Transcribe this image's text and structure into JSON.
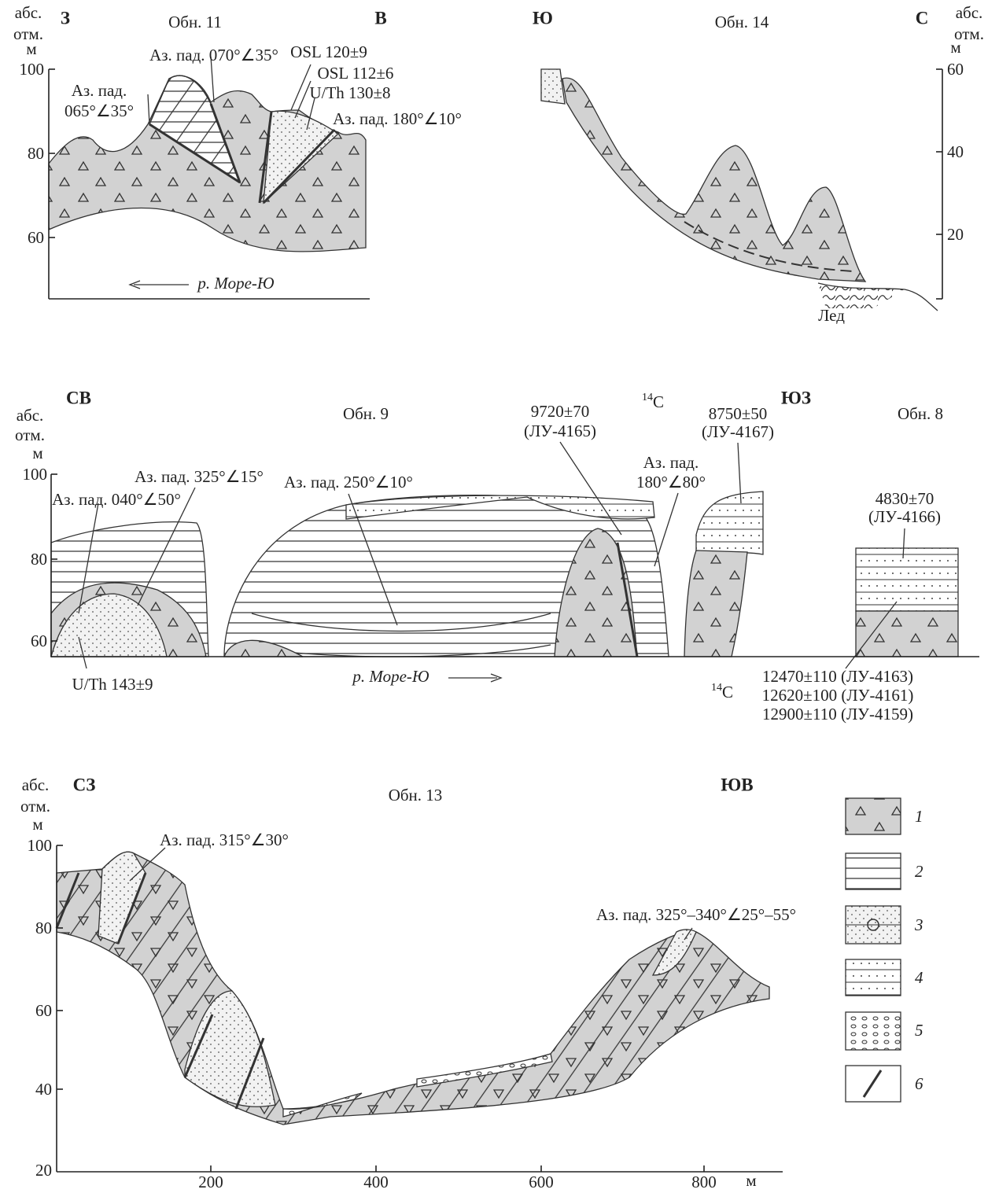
{
  "section_11": {
    "axis_label": [
      "абс.",
      "отм.",
      "м"
    ],
    "west": "З",
    "title": "Обн. 11",
    "east": "В",
    "yticks": [
      100,
      80,
      60
    ],
    "annotations": [
      "Аз. пад. 070°∠35°",
      "OSL 120±9",
      "OSL 112±6",
      "U/Th 130±8",
      "Аз. пад.",
      "065°∠35°",
      "Аз. пад. 180°∠10°"
    ],
    "river": "р. Море-Ю"
  },
  "section_14": {
    "south": "Ю",
    "title": "Обн. 14",
    "north": "С",
    "axis_label": [
      "абс.",
      "отм.",
      "м"
    ],
    "yticks": [
      60,
      40,
      20
    ],
    "ice": "Лед"
  },
  "section_9_8": {
    "northeast": "СВ",
    "axis_label": [
      "абс.",
      "отм.",
      "м"
    ],
    "title_9": "Обн. 9",
    "radiocarbon_top": {
      "mass": "14",
      "element": "C"
    },
    "southwest": "ЮЗ",
    "title_8": "Обн. 8",
    "yticks": [
      100,
      80,
      60
    ],
    "dates": [
      [
        "9720±70",
        "(ЛУ-4165)"
      ],
      [
        "8750±50",
        "(ЛУ-4167)"
      ],
      [
        "4830±70",
        "(ЛУ-4166)"
      ]
    ],
    "annotations": [
      "Аз. пад.",
      "180°∠80°",
      "Аз. пад. 325°∠15°",
      "Аз. пад. 040°∠50°",
      "Аз. пад. 250°∠10°",
      "U/Th 143±9"
    ],
    "river": "р. Море-Ю",
    "radiocarbon_bottom": {
      "mass": "14",
      "element": "C"
    },
    "bottom_dates": [
      "12470±110 (ЛУ-4163)",
      "12620±100 (ЛУ-4161)",
      "12900±110 (ЛУ-4159)"
    ]
  },
  "section_13": {
    "axis_label": [
      "абс.",
      "отм.",
      "м"
    ],
    "northwest": "СЗ",
    "title": "Обн. 13",
    "southeast": "ЮВ",
    "yticks": [
      100,
      80,
      60,
      40,
      20
    ],
    "xticks": [
      200,
      400,
      600,
      800
    ],
    "x_unit": "м",
    "annotations": [
      "Аз. пад. 315°∠30°",
      "Аз. пад. 325°–340°∠25°–55°"
    ]
  },
  "legend": [
    "1",
    "2",
    "3",
    "4",
    "5",
    "6"
  ]
}
